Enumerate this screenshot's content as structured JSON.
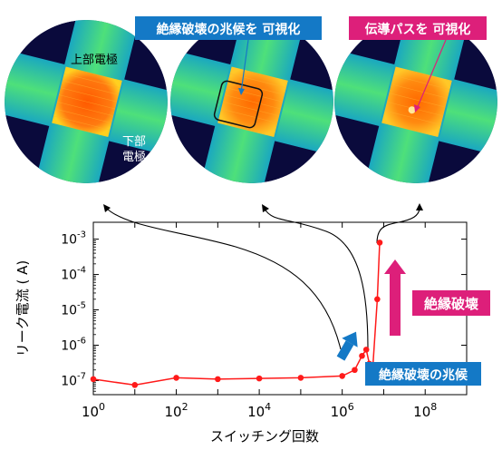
{
  "callouts": {
    "precursor_visualized": "絶縁破壊の兆候を 可視化",
    "path_visualized": "伝導パスを 可視化",
    "breakdown": "絶縁破壊",
    "precursor": "絶縁破壊の兆候"
  },
  "micrographs": {
    "top_electrode_label": "上部電極",
    "bottom_electrode_label": "下部\n電極"
  },
  "colors": {
    "data_red": "#ff1a1a",
    "blue_box": "#1479c6",
    "magenta_box": "#dd1f7a",
    "micrograph_background": "#0a0a3c",
    "micrograph_electrode": "#46e878",
    "micrograph_hot": "#ff6a00"
  },
  "chart_data": {
    "type": "scatter",
    "xlabel": "スイッチング回数",
    "ylabel": "リーク電流 ( A)",
    "xscale": "log",
    "yscale": "log",
    "xlim": [
      1,
      1000000000.0
    ],
    "ylim": [
      4e-08,
      0.003
    ],
    "x_tick_labels": [
      "10^0",
      "10^2",
      "10^4",
      "10^6",
      "10^8"
    ],
    "y_tick_labels": [
      "10^-7",
      "10^-6",
      "10^-5",
      "10^-4",
      "10^-3"
    ],
    "grid": false,
    "series": [
      {
        "name": "",
        "color": "#ff1a1a",
        "points": [
          [
            1,
            1.1e-07
          ],
          [
            10,
            7.5e-08
          ],
          [
            100,
            1.2e-07
          ],
          [
            1000,
            1.1e-07
          ],
          [
            10000,
            1.15e-07
          ],
          [
            100000,
            1.2e-07
          ],
          [
            1000000,
            1.35e-07
          ],
          [
            2000000,
            2e-07
          ],
          [
            3000000,
            5e-07
          ],
          [
            3800000,
            7.5e-07
          ],
          [
            4500000,
            3e-07
          ],
          [
            5500000,
            2.8e-07
          ],
          [
            7000000,
            2e-05
          ],
          [
            8000000,
            0.0008
          ]
        ]
      }
    ]
  }
}
